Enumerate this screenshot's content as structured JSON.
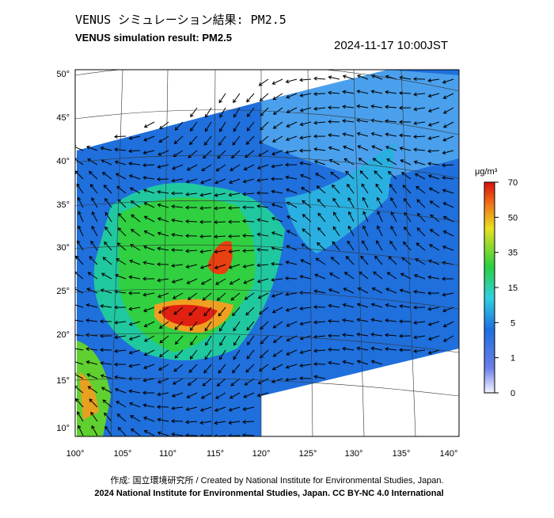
{
  "header": {
    "title_ja": "VENUS シミュレーション結果: PM2.5",
    "title_en": "VENUS simulation result: PM2.5",
    "datetime": "2024-11-17 10:00JST"
  },
  "map": {
    "lat_labels": [
      "50°",
      "45°",
      "40°",
      "35°",
      "30°",
      "25°",
      "20°",
      "15°",
      "10°"
    ],
    "lon_labels": [
      "100°",
      "105°",
      "110°",
      "115°",
      "120°",
      "125°",
      "130°",
      "135°",
      "140°"
    ]
  },
  "colorbar": {
    "unit": "μg/m³",
    "ticks": [
      70,
      50,
      35,
      15,
      5,
      1,
      0
    ]
  },
  "footer": {
    "credit": "作成: 国立環境研究所 / Created by National Institute for Environmental Studies, Japan.",
    "license": "2024 National Institute for Environmental Studies, Japan. CC BY-NC 4.0 International"
  }
}
